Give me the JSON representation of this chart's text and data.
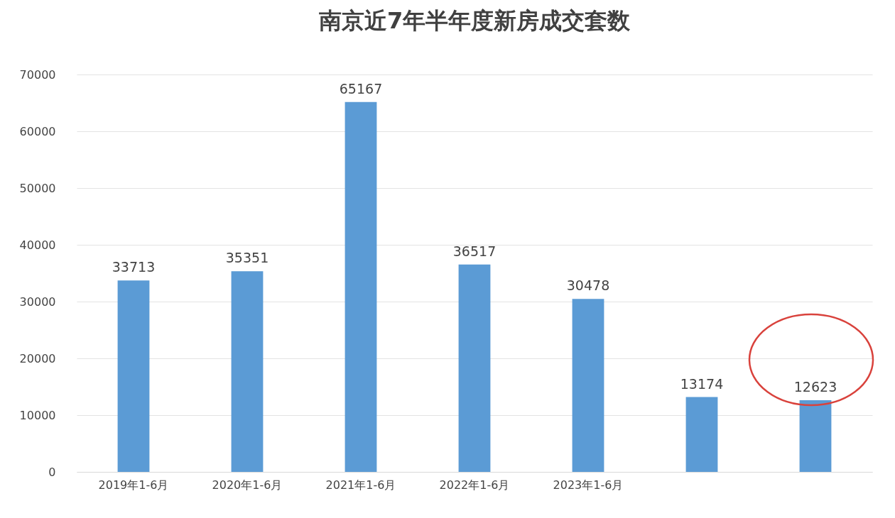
{
  "chart_data": {
    "type": "bar",
    "title": "南京近7年半年度新房成交套数",
    "categories": [
      "2019年1-6月",
      "2020年1-6月",
      "2021年1-6月",
      "2022年1-6月",
      "2023年1-6月",
      null,
      null
    ],
    "values": [
      33713,
      35351,
      65167,
      36517,
      30478,
      13174,
      12623
    ],
    "color": "#5b9bd5",
    "ylim": [
      0,
      70000
    ],
    "yticks": [
      0,
      10000,
      20000,
      30000,
      40000,
      50000,
      60000,
      70000
    ],
    "grid": "y",
    "data_labels": true
  }
}
